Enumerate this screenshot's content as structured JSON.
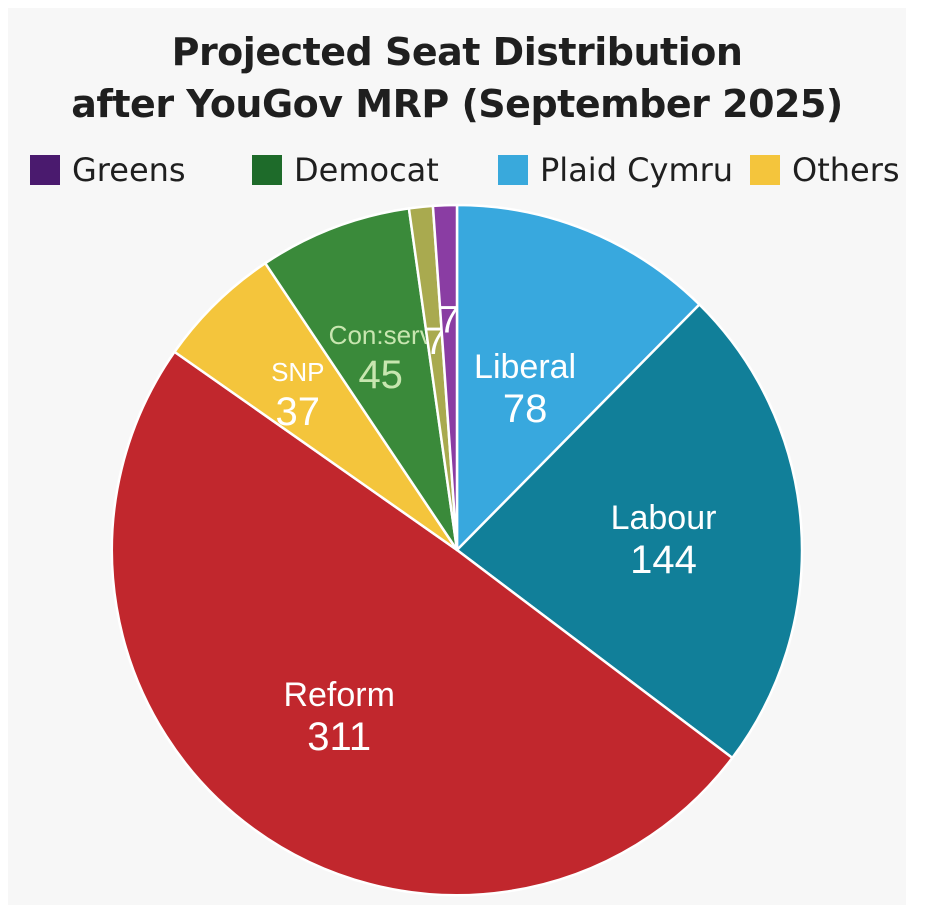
{
  "chart_data": {
    "type": "pie",
    "title_line1": "Projected Seat Distribution",
    "title_line2": "after YouGov MRP (September 2025)",
    "legend": [
      {
        "label": "Greens",
        "color": "#4a1a6e"
      },
      {
        "label": "Democat",
        "color": "#1e6b2a"
      },
      {
        "label": "Plaid Cymru",
        "color": "#39a9dc"
      },
      {
        "label": "Others",
        "color": "#f4c53c"
      }
    ],
    "slices": [
      {
        "label": "Liberal",
        "value": 78,
        "color": "#38a8de",
        "text_color": "#ffffff"
      },
      {
        "label": "Labour",
        "value": 144,
        "color": "#117f99",
        "text_color": "#ffffff"
      },
      {
        "label": "Reform",
        "value": 311,
        "color": "#c1272d",
        "text_color": "#ffffff"
      },
      {
        "label": "SNP",
        "value": 37,
        "color": "#f4c53c",
        "text_color": "#ffffff"
      },
      {
        "label": "Con:serv",
        "value": 45,
        "color": "#3a8a3a",
        "text_color": "#c8e6b0"
      },
      {
        "label": "",
        "value": 7,
        "color": "#a9aa4f",
        "text_color": "#ffffff"
      },
      {
        "label": "",
        "value": 7,
        "color": "#8a3da3",
        "text_color": "#ffffff"
      }
    ]
  }
}
